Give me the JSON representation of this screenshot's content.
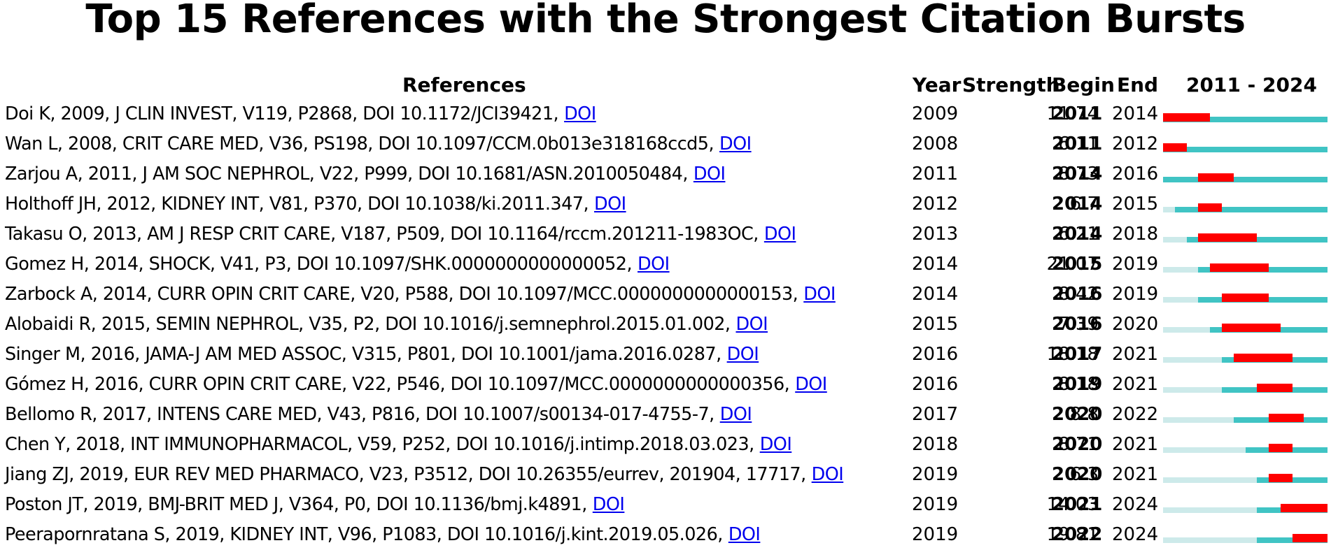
{
  "chart_data": {
    "type": "table",
    "title": "Top 15 References with the Strongest Citation Bursts",
    "columns": {
      "references": "References",
      "year": "Year",
      "strength": "Strength",
      "begin": "Begin",
      "end": "End",
      "range": "2011 - 2024"
    },
    "range_start": 2011,
    "range_end": 2024,
    "link_label": "DOI",
    "colors": {
      "burst": "#ff0000",
      "active": "#40c4c4",
      "pre_publication": "#cdeaea",
      "link": "#0000ee"
    },
    "rows": [
      {
        "reference": "Doi K, 2009, J CLIN INVEST, V119, P2868, DOI 10.1172/JCI39421,",
        "year": 2009,
        "strength": "11.74",
        "begin": 2011,
        "end": 2014
      },
      {
        "reference": "Wan L, 2008, CRIT CARE MED, V36, PS198, DOI 10.1097/CCM.0b013e318168ccd5,",
        "year": 2008,
        "strength": "6.11",
        "begin": 2011,
        "end": 2012
      },
      {
        "reference": "Zarjou A, 2011, J AM SOC NEPHROL, V22, P999, DOI 10.1681/ASN.2010050484,",
        "year": 2011,
        "strength": "8.73",
        "begin": 2014,
        "end": 2016
      },
      {
        "reference": "Holthoff JH, 2012, KIDNEY INT, V81, P370, DOI 10.1038/ki.2011.347,",
        "year": 2012,
        "strength": "6.7",
        "begin": 2014,
        "end": 2015
      },
      {
        "reference": "Takasu O, 2013, AM J RESP CRIT CARE, V187, P509, DOI 10.1164/rccm.201211-1983OC,",
        "year": 2013,
        "strength": "6.21",
        "begin": 2014,
        "end": 2018
      },
      {
        "reference": "Gomez H, 2014, SHOCK, V41, P3, DOI 10.1097/SHK.0000000000000052,",
        "year": 2014,
        "strength": "21.07",
        "begin": 2015,
        "end": 2019
      },
      {
        "reference": "Zarbock A, 2014, CURR OPIN CRIT CARE, V20, P588, DOI 10.1097/MCC.0000000000000153,",
        "year": 2014,
        "strength": "8.42",
        "begin": 2016,
        "end": 2019
      },
      {
        "reference": "Alobaidi R, 2015, SEMIN NEPHROL, V35, P2, DOI 10.1016/j.semnephrol.2015.01.002,",
        "year": 2015,
        "strength": "7.39",
        "begin": 2016,
        "end": 2020
      },
      {
        "reference": "Singer M, 2016, JAMA-J AM MED ASSOC, V315, P801, DOI 10.1001/jama.2016.0287,",
        "year": 2016,
        "strength": "18.18",
        "begin": 2017,
        "end": 2021
      },
      {
        "reference": "Gómez H, 2016, CURR OPIN CRIT CARE, V22, P546, DOI 10.1097/MCC.0000000000000356,",
        "year": 2016,
        "strength": "8.18",
        "begin": 2019,
        "end": 2021
      },
      {
        "reference": "Bellomo R, 2017, INTENS CARE MED, V43, P816, DOI 10.1007/s00134-017-4755-7,",
        "year": 2017,
        "strength": "8.8",
        "begin": 2020,
        "end": 2022
      },
      {
        "reference": "Chen Y, 2018, INT IMMUNOPHARMACOL, V59, P252, DOI 10.1016/j.intimp.2018.03.023,",
        "year": 2018,
        "strength": "8.71",
        "begin": 2020,
        "end": 2021
      },
      {
        "reference": "Jiang ZJ, 2019, EUR REV MED PHARMACO, V23, P3512, DOI 10.26355/eurrev, 201904, 17717,",
        "year": 2019,
        "strength": "6.3",
        "begin": 2020,
        "end": 2021
      },
      {
        "reference": "Poston JT, 2019, BMJ-BRIT MED J, V364, P0, DOI 10.1136/bmj.k4891,",
        "year": 2019,
        "strength": "14.03",
        "begin": 2021,
        "end": 2024
      },
      {
        "reference": "Peerapornratana S, 2019, KIDNEY INT, V96, P1083, DOI 10.1016/j.kint.2019.05.026,",
        "year": 2019,
        "strength": "19.81",
        "begin": 2022,
        "end": 2024
      }
    ]
  }
}
